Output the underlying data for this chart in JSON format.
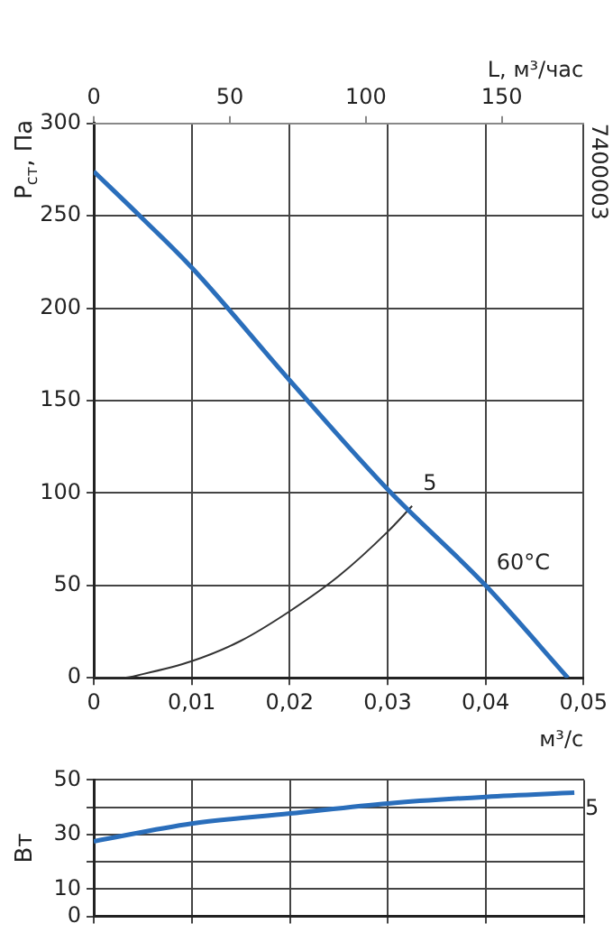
{
  "chart_data": [
    {
      "type": "line",
      "xlabel": "м³/с",
      "ylabel": "P$_{ст}$, Па",
      "x2label": "L, м³/час",
      "xlim": [
        0,
        0.05
      ],
      "xticks": [
        0,
        {
          "value": 0.01,
          "label": "0,01"
        },
        {
          "value": 0.02,
          "label": "0,02"
        },
        {
          "value": 0.03,
          "label": "0,03"
        },
        {
          "value": 0.04,
          "label": "0,04"
        },
        {
          "value": 0.05,
          "label": "0,05"
        }
      ],
      "x2lim": [
        0,
        180
      ],
      "x2ticks": [
        0,
        50,
        100,
        150
      ],
      "ylim": [
        0,
        300
      ],
      "yticks": [
        0,
        50,
        100,
        150,
        200,
        250,
        300
      ],
      "grid": true,
      "series": [
        {
          "color": "#2a6ebb",
          "x": [
            0,
            0.0047,
            0.01,
            0.02,
            0.03,
            0.04,
            0.0484
          ],
          "values": [
            274,
            250,
            222,
            161,
            102,
            50,
            0
          ]
        },
        {
          "color": "#333333",
          "x": [
            0,
            0.003,
            0.005,
            0.01,
            0.015,
            0.02,
            0.025,
            0.03,
            0.0325
          ],
          "values": [
            0,
            0,
            2,
            9,
            20,
            36,
            55,
            79,
            93
          ]
        }
      ],
      "annotations": [
        {
          "text": "5",
          "x": 0.0325,
          "y": 93
        },
        {
          "text": "60°C",
          "x": 0.04,
          "y": 50
        },
        "7400003"
      ]
    },
    {
      "type": "line",
      "ylabel": "Вт",
      "xlim": [
        0,
        0.05
      ],
      "xticks": [
        0,
        0.01,
        0.02,
        0.03,
        0.04,
        0.05
      ],
      "ylim": [
        0,
        50
      ],
      "yticks": [
        0,
        10,
        {
          "value": 20,
          "label": null
        },
        30,
        {
          "value": 40,
          "label": null
        },
        50
      ],
      "grid": true,
      "tick_labels": "y",
      "series": [
        {
          "color": "#2a6ebb",
          "x": [
            0,
            0.01,
            0.02,
            0.03,
            0.04,
            0.049
          ],
          "values": [
            27.5,
            34,
            37.7,
            41.4,
            43.8,
            45.3
          ]
        }
      ],
      "annotations": [
        {
          "text": "5",
          "x": 0.049,
          "y": 45.3
        }
      ]
    }
  ]
}
